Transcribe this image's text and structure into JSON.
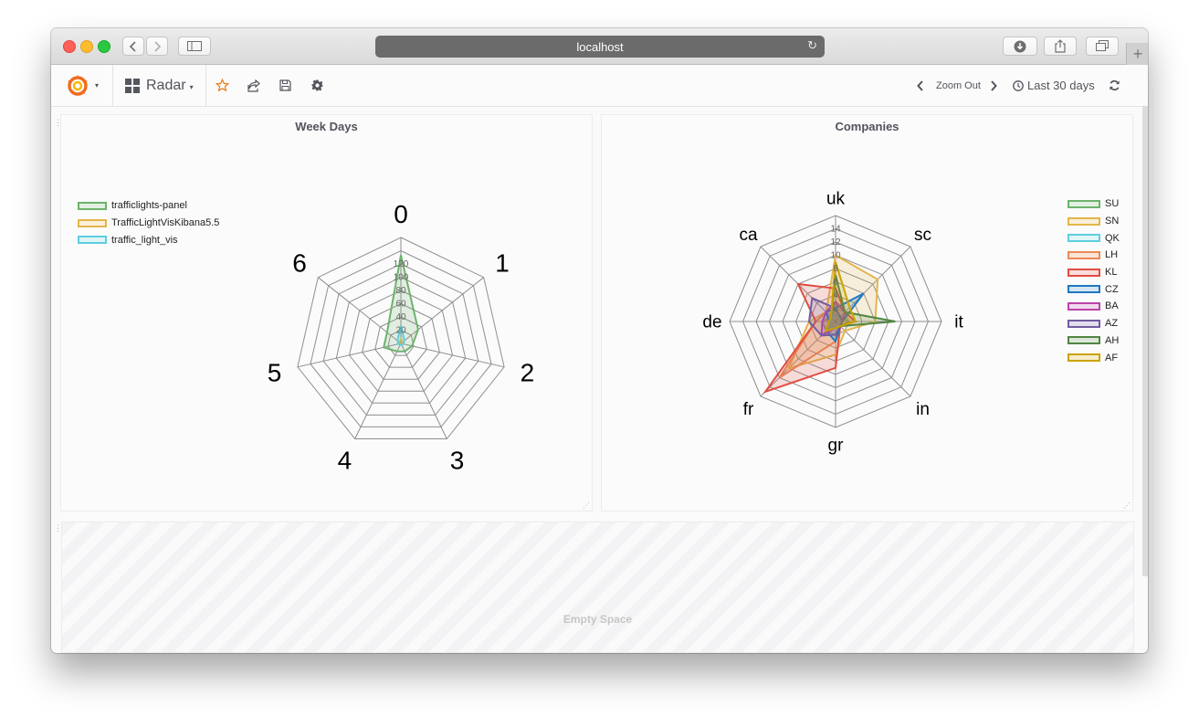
{
  "browser": {
    "url": "localhost"
  },
  "toolbar": {
    "dashboard_title": "Radar",
    "zoom_out_label": "Zoom Out",
    "time_range_label": "Last 30 days"
  },
  "colors": {
    "accent": "#eb7b18",
    "grafana_orange": "#f26b1d",
    "grid": "#888888"
  },
  "icons": [
    "grafana-logo-icon",
    "chevron-down-icon",
    "dashboard-grid-icon",
    "star-icon",
    "share-icon",
    "save-icon",
    "gear-icon",
    "chevron-left-icon",
    "chevron-right-icon",
    "clock-icon",
    "refresh-icon",
    "download-icon",
    "share-sheet-icon",
    "tabs-icon",
    "sidebar-icon",
    "back-icon",
    "forward-icon",
    "reload-icon"
  ],
  "empty_space": {
    "label": "Empty Space"
  },
  "chart_data": [
    {
      "type": "radar",
      "title": "Week Days",
      "axes": [
        "0",
        "1",
        "2",
        "3",
        "4",
        "5",
        "6"
      ],
      "ticks": [
        "20",
        "40",
        "60",
        "80",
        "100",
        "120"
      ],
      "rmax": 120,
      "legend_position": "left",
      "series": [
        {
          "name": "trafficlights-panel",
          "color": "#6db36c",
          "values": [
            100,
            25,
            13,
            10,
            10,
            20,
            20
          ]
        },
        {
          "name": "TrafficLightVisKibana5.5",
          "color": "#e3b54b",
          "values": [
            5,
            2,
            2,
            1,
            1,
            1,
            2
          ]
        },
        {
          "name": "traffic_light_vis",
          "color": "#5fcde0",
          "values": [
            20,
            5,
            3,
            2,
            2,
            3,
            5
          ]
        }
      ]
    },
    {
      "type": "radar",
      "title": "Companies",
      "axes": [
        "uk",
        "sc",
        "it",
        "in",
        "gr",
        "fr",
        "de",
        "ca"
      ],
      "ticks": [
        "2",
        "4",
        "6",
        "8",
        "10",
        "12",
        "14"
      ],
      "rmax": 16,
      "legend_position": "right",
      "series": [
        {
          "name": "SU",
          "color": "#6db36c",
          "values": [
            2,
            1,
            2,
            1,
            1,
            2,
            2,
            1
          ]
        },
        {
          "name": "SN",
          "color": "#e3b54b",
          "values": [
            10,
            9,
            6,
            2,
            5,
            10,
            4,
            2
          ]
        },
        {
          "name": "QK",
          "color": "#5fcde0",
          "values": [
            1,
            1,
            1,
            1,
            1,
            1,
            1,
            1
          ]
        },
        {
          "name": "LH",
          "color": "#ea8a57",
          "values": [
            3,
            2,
            3,
            1,
            3,
            12,
            3,
            2
          ]
        },
        {
          "name": "KL",
          "color": "#e24d42",
          "values": [
            5,
            2,
            3,
            1,
            7,
            15,
            3,
            8
          ]
        },
        {
          "name": "CZ",
          "color": "#1f78c1",
          "values": [
            2,
            6,
            1,
            1,
            3,
            2,
            1,
            2
          ]
        },
        {
          "name": "BA",
          "color": "#ba43a9",
          "values": [
            3,
            2,
            1,
            1,
            1,
            3,
            2,
            2
          ]
        },
        {
          "name": "AZ",
          "color": "#705da0",
          "values": [
            2,
            1,
            1,
            1,
            2,
            3,
            4,
            5
          ]
        },
        {
          "name": "AH",
          "color": "#508642",
          "values": [
            7,
            2,
            9,
            1,
            1,
            2,
            1,
            1
          ]
        },
        {
          "name": "AF",
          "color": "#cca300",
          "values": [
            9,
            3,
            3,
            1,
            1,
            2,
            1,
            1
          ]
        }
      ]
    }
  ]
}
